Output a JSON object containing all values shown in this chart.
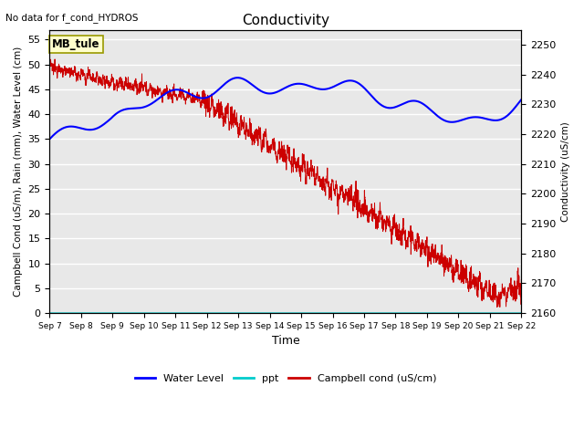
{
  "title": "Conductivity",
  "top_left_text": "No data for f_cond_HYDROS",
  "station_label": "MB_tule",
  "xlabel": "Time",
  "ylabel_left": "Campbell Cond (uS/m), Rain (mm), Water Level (cm)",
  "ylabel_right": "Conductivity (uS/cm)",
  "xlim": [
    0,
    15.5
  ],
  "ylim_left": [
    0,
    57
  ],
  "ylim_right": [
    2160,
    2255
  ],
  "yticks_left": [
    0,
    5,
    10,
    15,
    20,
    25,
    30,
    35,
    40,
    45,
    50,
    55
  ],
  "yticks_right": [
    2160,
    2170,
    2180,
    2190,
    2200,
    2210,
    2220,
    2230,
    2240,
    2250
  ],
  "xtick_labels": [
    "Sep 7",
    "Sep 8",
    "Sep 9",
    "Sep 10",
    "Sep 11",
    "Sep 12",
    "Sep 13",
    "Sep 14",
    "Sep 15",
    "Sep 16",
    "Sep 17",
    "Sep 18",
    "Sep 19",
    "Sep 20",
    "Sep 21",
    "Sep 22"
  ],
  "water_level_color": "#0000FF",
  "ppt_color": "#00CCCC",
  "campbell_color": "#CC0000",
  "background_color": "#E8E8E8",
  "grid_color": "#FFFFFF",
  "legend_entries": [
    "Water Level",
    "ppt",
    "Campbell cond (uS/cm)"
  ],
  "fig_width": 6.4,
  "fig_height": 4.8,
  "dpi": 100
}
